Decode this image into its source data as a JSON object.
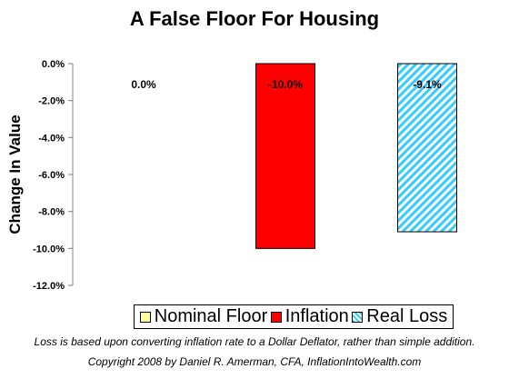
{
  "chart_data": {
    "type": "bar",
    "title": "A False Floor For Housing",
    "ylabel": "Change In Value",
    "xlabel": "",
    "ylim": [
      -12,
      0
    ],
    "yticks": [
      0,
      -2,
      -4,
      -6,
      -8,
      -10,
      -12
    ],
    "ytick_labels": [
      "0.0%",
      "-2.0%",
      "-4.0%",
      "-6.0%",
      "-8.0%",
      "-10.0%",
      "-12.0%"
    ],
    "grid": false,
    "legend_position": "bottom",
    "series": [
      {
        "name": "Nominal Floor",
        "value": 0.0,
        "label": "0.0%",
        "color": "#ffff99",
        "pattern": "solid"
      },
      {
        "name": "Inflation",
        "value": -10.0,
        "label": "-10.0%",
        "color": "#ff0000",
        "pattern": "solid"
      },
      {
        "name": "Real Loss",
        "value": -9.1,
        "label": "-9.1%",
        "color": "#33ccff",
        "pattern": "diagonal-stripes"
      }
    ]
  },
  "footnotes": {
    "note": "Loss is based upon converting inflation rate to a Dollar Deflator, rather than simple addition.",
    "copyright": "Copyright 2008 by Daniel R. Amerman, CFA, InflationIntoWealth.com"
  }
}
